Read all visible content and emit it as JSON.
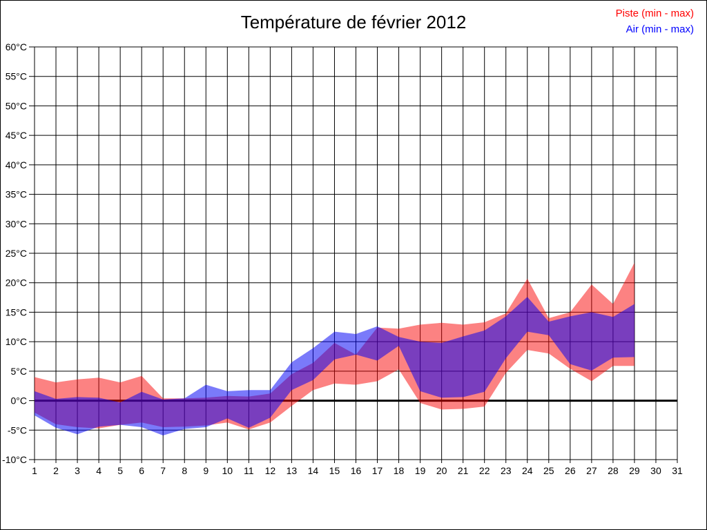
{
  "header": {
    "title": "Température de février 2012"
  },
  "legend": [
    {
      "label": "Piste (min - max)",
      "color": "#ff0000"
    },
    {
      "label": "Air (min - max)",
      "color": "#0000ff"
    }
  ],
  "colors": {
    "background": "#ffffff",
    "grid": "#000000",
    "zero_line": "#000000",
    "piste_band_fill": "#f90000",
    "air_band_fill": "#0000f5"
  },
  "chart_data": {
    "type": "area",
    "subtype": "min-max bands",
    "title": "Température de février 2012",
    "xlabel": "",
    "ylabel": "",
    "y_unit": "°C",
    "ylim": [
      -10,
      60
    ],
    "y_tick_step": 5,
    "xlim": [
      1,
      31
    ],
    "x_ticks": [
      1,
      2,
      3,
      4,
      5,
      6,
      7,
      8,
      9,
      10,
      11,
      12,
      13,
      14,
      15,
      16,
      17,
      18,
      19,
      20,
      21,
      22,
      23,
      24,
      25,
      26,
      27,
      28,
      29,
      30,
      31
    ],
    "grid": true,
    "zero_line_bold": true,
    "legend_position": "top-right",
    "days": [
      1,
      2,
      3,
      4,
      5,
      6,
      7,
      8,
      9,
      10,
      11,
      12,
      13,
      14,
      15,
      16,
      17,
      18,
      19,
      20,
      21,
      22,
      23,
      24,
      25,
      26,
      27,
      28,
      29
    ],
    "series": [
      {
        "name": "Piste (min - max)",
        "data_name": "piste-band",
        "color": "#f90000",
        "opacity": 0.49,
        "min": [
          -2.0,
          -4.0,
          -4.5,
          -4.7,
          -4.1,
          -3.7,
          -4.5,
          -4.4,
          -4.2,
          -3.7,
          -4.9,
          -3.7,
          -0.9,
          1.8,
          2.9,
          2.7,
          3.3,
          5.3,
          -0.4,
          -1.5,
          -1.4,
          -1.0,
          4.7,
          8.6,
          8.0,
          5.4,
          3.3,
          5.9,
          5.9
        ],
        "max": [
          4.0,
          3.1,
          3.6,
          3.9,
          3.1,
          4.2,
          0.4,
          0.4,
          0.5,
          0.8,
          0.7,
          1.2,
          4.5,
          6.4,
          9.8,
          7.8,
          12.4,
          12.2,
          12.9,
          13.2,
          12.9,
          13.3,
          14.8,
          20.7,
          14.0,
          15.0,
          19.7,
          16.4,
          23.4
        ]
      },
      {
        "name": "Air (min - max)",
        "data_name": "air-band",
        "color": "#0000f5",
        "opacity": 0.52,
        "min": [
          -2.5,
          -4.6,
          -5.7,
          -4.4,
          -4.1,
          -4.5,
          -5.9,
          -4.8,
          -4.5,
          -3.0,
          -4.6,
          -2.9,
          1.8,
          3.5,
          7.0,
          7.8,
          6.8,
          9.3,
          1.6,
          0.5,
          0.6,
          1.5,
          7.2,
          11.7,
          11.1,
          6.2,
          5.1,
          7.3,
          7.4
        ],
        "max": [
          1.6,
          0.3,
          0.6,
          0.5,
          -0.3,
          1.5,
          0.2,
          0.4,
          2.7,
          1.6,
          1.8,
          1.8,
          6.5,
          8.9,
          11.7,
          11.3,
          12.6,
          10.8,
          10.0,
          9.8,
          10.9,
          11.9,
          14.3,
          17.6,
          13.4,
          14.3,
          15.0,
          14.2,
          16.4
        ]
      }
    ]
  }
}
